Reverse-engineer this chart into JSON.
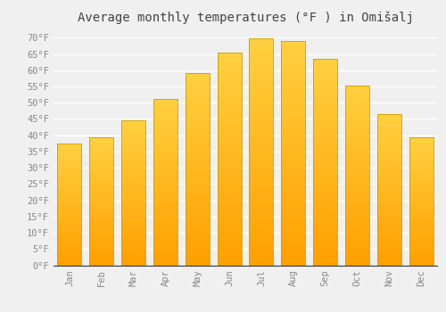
{
  "title": "Average monthly temperatures (°F ) in Omišalj",
  "months": [
    "Jan",
    "Feb",
    "Mar",
    "Apr",
    "May",
    "Jun",
    "Jul",
    "Aug",
    "Sep",
    "Oct",
    "Nov",
    "Dec"
  ],
  "values": [
    37.4,
    39.4,
    44.6,
    51.1,
    59.0,
    65.3,
    69.8,
    69.1,
    63.5,
    55.4,
    46.4,
    39.4
  ],
  "bar_color_top": "#FFD040",
  "bar_color_bottom": "#FFA000",
  "bar_edge_color": "#C8A000",
  "background_color": "#f0f0f0",
  "grid_color": "#ffffff",
  "ylim": [
    0,
    72
  ],
  "yticks": [
    0,
    5,
    10,
    15,
    20,
    25,
    30,
    35,
    40,
    45,
    50,
    55,
    60,
    65,
    70
  ],
  "tick_label_color": "#888888",
  "title_color": "#444444",
  "title_fontsize": 10,
  "tick_fontsize": 7.5
}
